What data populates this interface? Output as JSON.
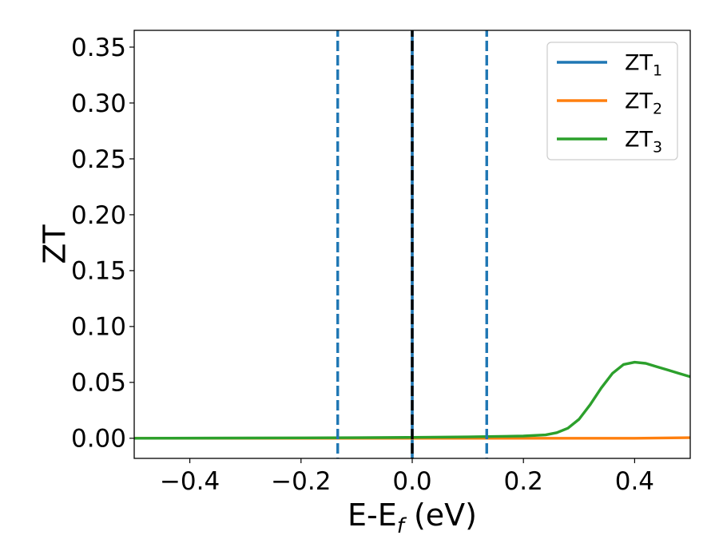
{
  "chart_data": {
    "type": "line",
    "title": "",
    "xlabel": {
      "main": "E-E",
      "sub": "f",
      "unit": " (eV)"
    },
    "ylabel": "ZT",
    "xlim": [
      -0.5,
      0.5
    ],
    "ylim": [
      -0.018,
      0.365
    ],
    "x_ticks": [
      -0.4,
      -0.2,
      0.0,
      0.2,
      0.4
    ],
    "x_tick_labels": [
      "−0.4",
      "−0.2",
      "0.0",
      "0.2",
      "0.4"
    ],
    "y_ticks": [
      0.0,
      0.05,
      0.1,
      0.15,
      0.2,
      0.25,
      0.3,
      0.35
    ],
    "y_tick_labels": [
      "0.00",
      "0.05",
      "0.10",
      "0.15",
      "0.20",
      "0.25",
      "0.30",
      "0.35"
    ],
    "grid": false,
    "legend_position": "top-right",
    "series": [
      {
        "name": "ZT",
        "subscript": "1",
        "color": "#1f77b4",
        "style": "vertical-line",
        "x": [
          0.0,
          0.0
        ],
        "y": [
          -0.018,
          0.365
        ]
      },
      {
        "name": "ZT",
        "subscript": "2",
        "color": "#ff7f0e",
        "style": "line",
        "x": [
          -0.5,
          -0.3,
          -0.1,
          0.0,
          0.1,
          0.2,
          0.3,
          0.4,
          0.5
        ],
        "y": [
          0.0,
          0.0,
          0.0,
          0.0,
          0.0,
          0.0,
          0.0,
          0.0,
          0.0005
        ]
      },
      {
        "name": "ZT",
        "subscript": "3",
        "color": "#2ca02c",
        "style": "line",
        "x": [
          -0.5,
          -0.3,
          -0.1,
          0.0,
          0.1,
          0.2,
          0.24,
          0.26,
          0.28,
          0.3,
          0.32,
          0.34,
          0.36,
          0.38,
          0.4,
          0.42,
          0.44,
          0.46,
          0.48,
          0.5
        ],
        "y": [
          0.0,
          0.0002,
          0.0005,
          0.0008,
          0.0012,
          0.002,
          0.003,
          0.005,
          0.009,
          0.017,
          0.03,
          0.045,
          0.058,
          0.066,
          0.068,
          0.067,
          0.064,
          0.061,
          0.058,
          0.055
        ]
      }
    ],
    "reference_lines": [
      {
        "x": 0.0,
        "color": "#000000",
        "style": "dashed"
      },
      {
        "x": -0.134,
        "color": "#1f77b4",
        "style": "dashed"
      },
      {
        "x": 0.134,
        "color": "#1f77b4",
        "style": "dashed"
      }
    ]
  }
}
